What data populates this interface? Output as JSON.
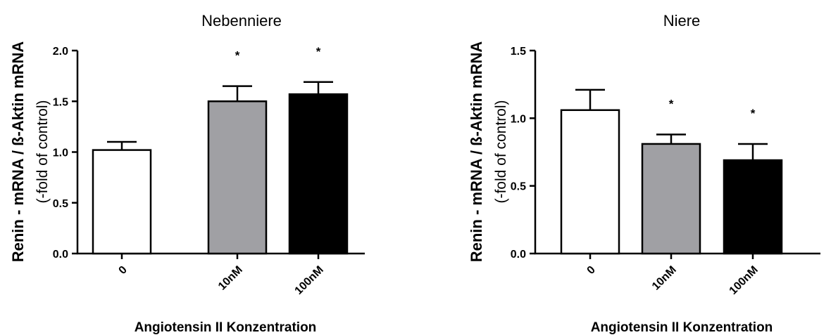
{
  "chart_data": [
    {
      "type": "bar",
      "title": "Nebenniere",
      "ylabel": "Renin - mRNA / ß-Aktin mRNA",
      "ylabel_sub": "(-fold of control)",
      "xlabel": "Angiotensin II Konzentration",
      "categories": [
        "0",
        "10nM",
        "100nM"
      ],
      "values": [
        1.02,
        1.5,
        1.57
      ],
      "errors": [
        0.08,
        0.15,
        0.12
      ],
      "significance": [
        "",
        "*",
        "*"
      ],
      "bar_colors": [
        "#ffffff",
        "#a0a0a4",
        "#000000"
      ],
      "ylim": [
        0,
        2.0
      ],
      "yticks": [
        "0.0",
        "0.5",
        "1.0",
        "1.5",
        "2.0"
      ],
      "grid": false,
      "legend": "none"
    },
    {
      "type": "bar",
      "title": "Niere",
      "ylabel": "Renin - mRNA / ß-Aktin mRNA",
      "ylabel_sub": "(-fold of control)",
      "xlabel": "Angiotensin II Konzentration",
      "categories": [
        "0",
        "10nM",
        "100nM"
      ],
      "values": [
        1.06,
        0.81,
        0.69
      ],
      "errors": [
        0.15,
        0.07,
        0.12
      ],
      "significance": [
        "",
        "*",
        "*"
      ],
      "bar_colors": [
        "#ffffff",
        "#a0a0a4",
        "#000000"
      ],
      "ylim": [
        0,
        1.5
      ],
      "yticks": [
        "0.0",
        "0.5",
        "1.0",
        "1.5"
      ],
      "grid": false,
      "legend": "none"
    }
  ]
}
